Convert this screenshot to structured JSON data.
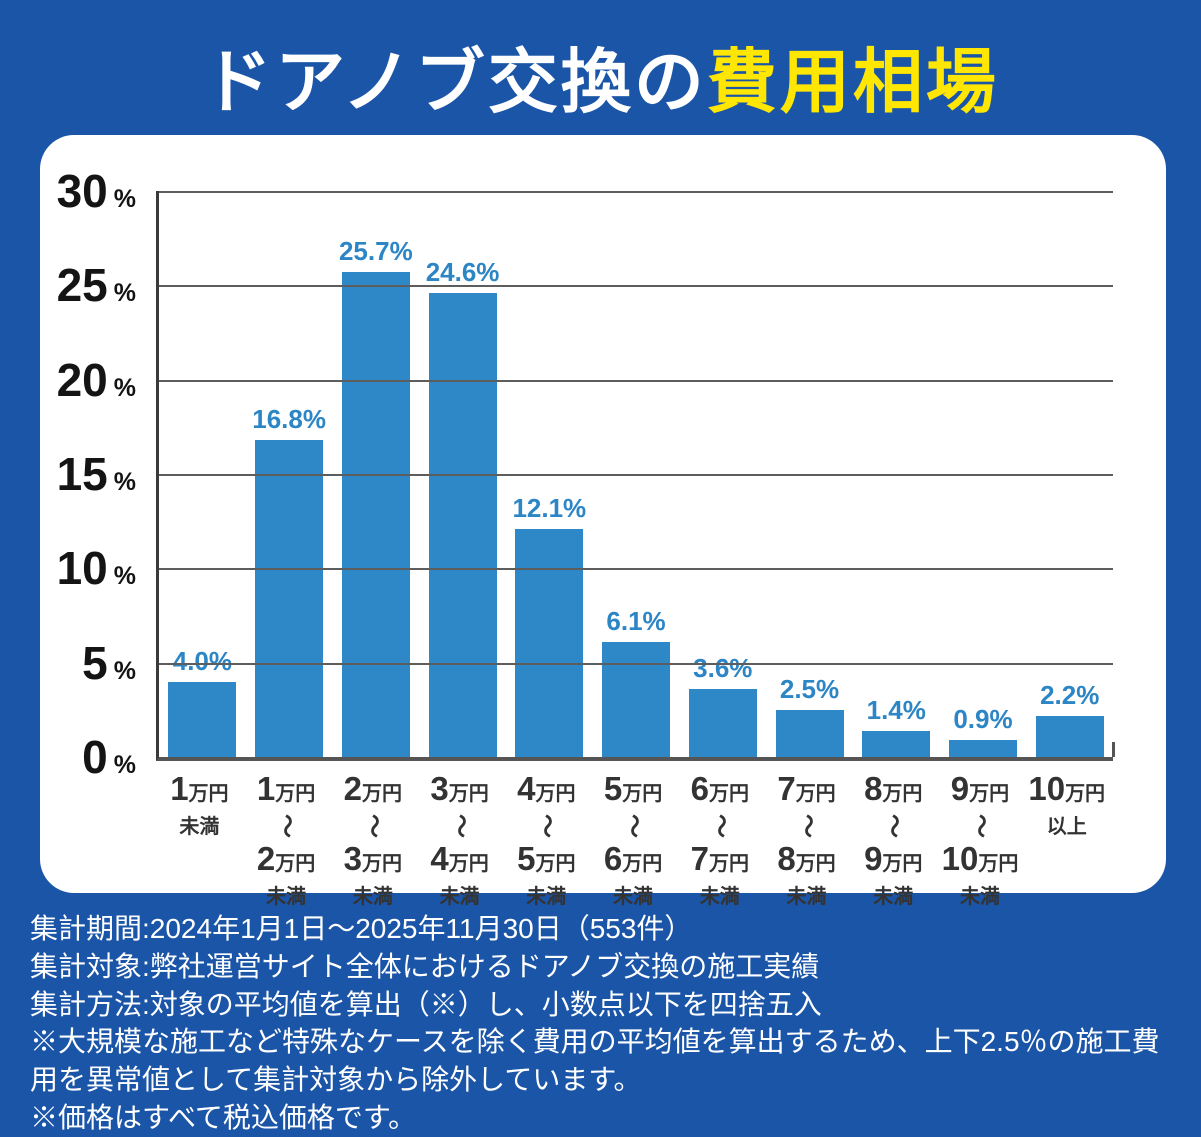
{
  "page_title": {
    "white": "ドアノブ交換の",
    "yellow": "費用相場"
  },
  "colors": {
    "background": "#1b55a7",
    "card": "#ffffff",
    "bar": "#2e87c7",
    "value_label": "#2c85c5",
    "title_yellow": "#ffe603",
    "grid": "#5d5d5d",
    "axis": "#3a3a3a",
    "x_label_text": "#333333",
    "footer_text": "#ffffff"
  },
  "chart_data": {
    "type": "bar",
    "title": "ドアノブ交換の費用相場",
    "unit": "%",
    "ylim": [
      0,
      30
    ],
    "ytick_interval": 5,
    "yticks": [
      "30",
      "25",
      "20",
      "15",
      "10",
      "5",
      "0"
    ],
    "ytick_unit": "%",
    "grid": true,
    "legend": false,
    "values": [
      4.0,
      16.8,
      25.7,
      24.6,
      12.1,
      6.1,
      3.6,
      2.5,
      1.4,
      0.9,
      2.2
    ],
    "value_labels": [
      "4.0%",
      "16.8%",
      "25.7%",
      "24.6%",
      "12.1%",
      "6.1%",
      "3.6%",
      "2.5%",
      "1.4%",
      "0.9%",
      "2.2%"
    ],
    "categories_text": [
      "1万円未満",
      "1万円〜2万円未満",
      "2万円〜3万円未満",
      "3万円〜4万円未満",
      "4万円〜5万円未満",
      "5万円〜6万円未満",
      "6万円〜7万円未満",
      "7万円〜8万円未満",
      "8万円〜9万円未満",
      "9万円〜10万円未満",
      "10万円以上"
    ],
    "categories": [
      {
        "n1": "1",
        "u1": "万円",
        "tilde": false,
        "n2": "",
        "u2": "",
        "note": "未満"
      },
      {
        "n1": "1",
        "u1": "万円",
        "tilde": true,
        "n2": "2",
        "u2": "万円",
        "note": "未満"
      },
      {
        "n1": "2",
        "u1": "万円",
        "tilde": true,
        "n2": "3",
        "u2": "万円",
        "note": "未満"
      },
      {
        "n1": "3",
        "u1": "万円",
        "tilde": true,
        "n2": "4",
        "u2": "万円",
        "note": "未満"
      },
      {
        "n1": "4",
        "u1": "万円",
        "tilde": true,
        "n2": "5",
        "u2": "万円",
        "note": "未満"
      },
      {
        "n1": "5",
        "u1": "万円",
        "tilde": true,
        "n2": "6",
        "u2": "万円",
        "note": "未満"
      },
      {
        "n1": "6",
        "u1": "万円",
        "tilde": true,
        "n2": "7",
        "u2": "万円",
        "note": "未満"
      },
      {
        "n1": "7",
        "u1": "万円",
        "tilde": true,
        "n2": "8",
        "u2": "万円",
        "note": "未満"
      },
      {
        "n1": "8",
        "u1": "万円",
        "tilde": true,
        "n2": "9",
        "u2": "万円",
        "note": "未満"
      },
      {
        "n1": "9",
        "u1": "万円",
        "tilde": true,
        "n2": "10",
        "u2": "万円",
        "note": "未満"
      },
      {
        "n1": "10",
        "u1": "万円",
        "tilde": false,
        "n2": "",
        "u2": "",
        "note": "以上"
      }
    ],
    "tilde_char": "〜"
  },
  "footer": {
    "lines": [
      "集計期間:2024年1月1日〜2025年11月30日（553件）",
      "集計対象:弊社運営サイト全体におけるドアノブ交換の施工実績",
      "集計方法:対象の平均値を算出（※）し、小数点以下を四捨五入",
      "※大規模な施工など特殊なケースを除く費用の平均値を算出するため、上下2.5％の施工費用を異常値として集計対象から除外しています。",
      "※価格はすべて税込価格です。"
    ]
  }
}
